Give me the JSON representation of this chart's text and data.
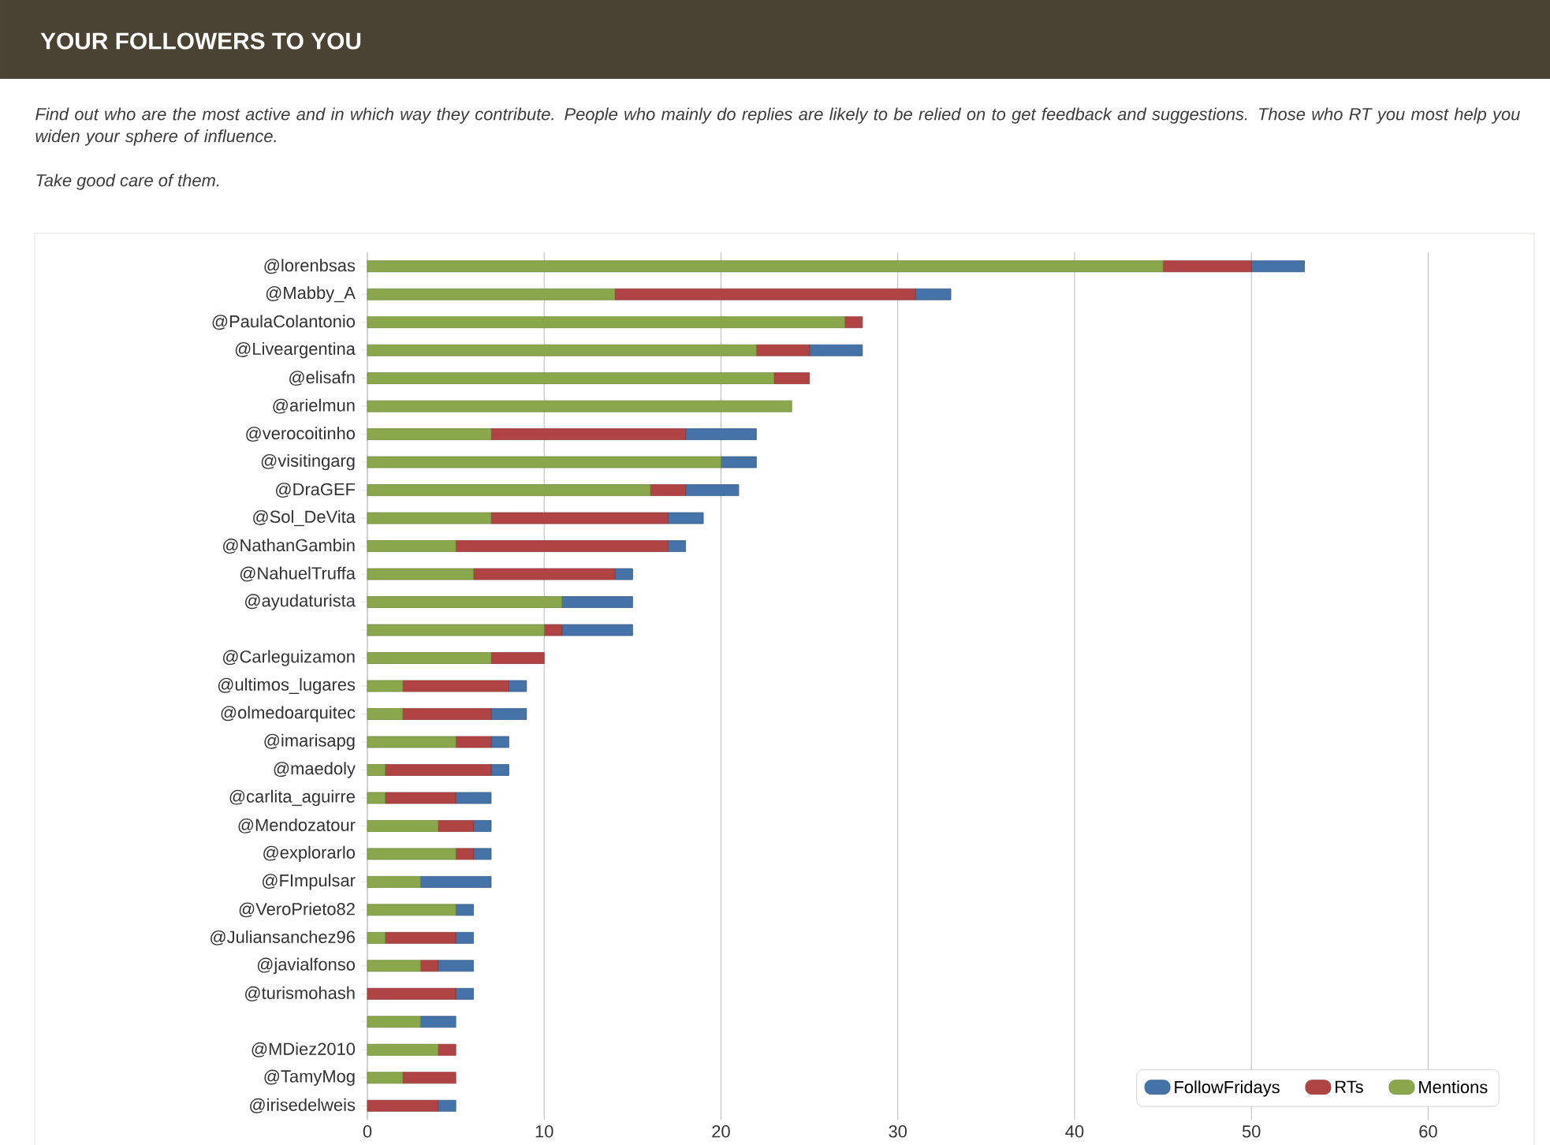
{
  "chart_data": {
    "type": "bar",
    "orientation": "horizontal",
    "stacked": true,
    "title": "YOUR FOLLOWERS TO YOU",
    "subtitle": "Find out who are the most active and in which way they contribute. People who mainly do replies are likely to be relied on to get feedback and suggestions. Those who RT you most help you widen your sphere of influence.",
    "annotations": [
      "Take good care of them."
    ],
    "categories": [
      "@lorenbsas",
      "@Mabby_A",
      "@PaulaColantonio",
      "@Liveargentina",
      "@elisafn",
      "@arielmun",
      "@verocoitinho",
      "@visitingarg",
      "@DraGEF",
      "@Sol_DeVita",
      "@NathanGambin",
      "@NahuelTruffa",
      "@ayudaturista",
      null,
      "@Carleguizamon",
      "@ultimos_lugares",
      "@olmedoarquitec",
      "@imarisapg",
      "@maedoly",
      "@carlita_aguirre",
      "@Mendozatour",
      "@explorarlo",
      "@FImpulsar",
      "@VeroPrieto82",
      "@Juliansanchez96",
      "@javialfonso",
      "@turismohash",
      null,
      "@MDiez2010",
      "@TamyMog",
      "@irisedelweis"
    ],
    "series": [
      {
        "name": "Mentions",
        "color": "#8aa84b",
        "values": [
          45,
          14,
          27,
          22,
          23,
          24,
          7,
          20,
          16,
          7,
          5,
          6,
          11,
          10,
          7,
          2,
          2,
          5,
          1,
          1,
          4,
          5,
          3,
          5,
          1,
          3,
          0,
          3,
          4,
          2,
          0
        ]
      },
      {
        "name": "RTs",
        "color": "#b04444",
        "values": [
          5,
          17,
          1,
          3,
          2,
          0,
          11,
          0,
          2,
          10,
          12,
          8,
          0,
          1,
          3,
          6,
          5,
          2,
          6,
          4,
          2,
          1,
          0,
          0,
          4,
          1,
          5,
          0,
          1,
          3,
          4
        ]
      },
      {
        "name": "FollowFridays",
        "color": "#4572a7",
        "values": [
          3,
          2,
          0,
          3,
          0,
          0,
          4,
          2,
          3,
          2,
          1,
          1,
          4,
          4,
          0,
          1,
          2,
          1,
          1,
          2,
          1,
          1,
          4,
          1,
          1,
          2,
          1,
          2,
          0,
          0,
          1
        ]
      }
    ],
    "xlim": [
      0,
      66
    ],
    "xticks": [
      0,
      10,
      20,
      30,
      40,
      50,
      60
    ],
    "grid": "x",
    "legend": "bottom right"
  }
}
